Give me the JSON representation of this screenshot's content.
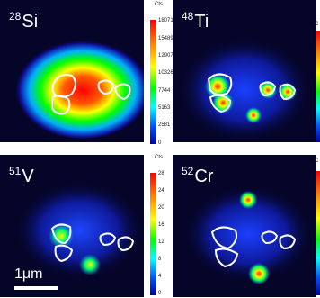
{
  "panels": [
    {
      "id": "si",
      "mass": "28",
      "element": "Si",
      "colorbar": {
        "unit": "Cts",
        "ticks": [
          "18071",
          "15489",
          "12907",
          "10326",
          "7744",
          "5163",
          "2581",
          "0"
        ]
      }
    },
    {
      "id": "ti",
      "mass": "48",
      "element": "Ti",
      "colorbar": {
        "unit": "C",
        "ticks": []
      }
    },
    {
      "id": "v",
      "mass": "51",
      "element": "V",
      "colorbar": {
        "unit": "Cts",
        "ticks": [
          "28",
          "24",
          "20",
          "16",
          "12",
          "8",
          "4",
          "0"
        ]
      }
    },
    {
      "id": "cr",
      "mass": "52",
      "element": "Cr",
      "colorbar": {
        "unit": "C",
        "ticks": []
      }
    }
  ],
  "scale_bar": {
    "label": "1μm"
  },
  "colors": {
    "background": "#05052a",
    "outline": "#ffffff"
  }
}
